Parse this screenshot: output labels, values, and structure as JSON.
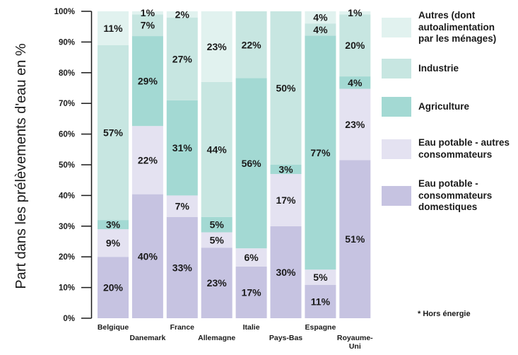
{
  "chart_data": {
    "type": "bar",
    "stacked": true,
    "percent": true,
    "ylabel": "Part dans les prélèvements d'eau en %",
    "ylim": [
      0,
      100
    ],
    "yticks": [
      "0%",
      "10%",
      "20%",
      "30%",
      "40%",
      "50%",
      "60%",
      "70%",
      "80%",
      "90%",
      "100%"
    ],
    "categories": [
      "Belgique",
      "Danemark",
      "France",
      "Allemagne",
      "Italie",
      "Pays-Bas",
      "Espagne",
      "Royaume-Uni"
    ],
    "category_labels": [
      [
        "Belgique"
      ],
      [
        "Danemark"
      ],
      [
        "France"
      ],
      [
        "Allemagne"
      ],
      [
        "Italie"
      ],
      [
        "Pays-Bas"
      ],
      [
        "Espagne"
      ],
      [
        "Royaume-",
        "Uni"
      ]
    ],
    "series": [
      {
        "name": "Eau potable - consommateurs domestiques",
        "color": "#c6c3e1",
        "values": [
          20,
          40,
          33,
          23,
          17,
          30,
          11,
          51
        ],
        "labels": [
          "20%",
          "40%",
          "33%",
          "23%",
          "17%",
          "30%",
          "11%",
          "51%"
        ]
      },
      {
        "name": "Eau potable - autres consommateurs",
        "color": "#e4e2f1",
        "values": [
          9,
          22,
          7,
          5,
          6,
          17,
          5,
          23
        ],
        "labels": [
          "9%",
          "22%",
          "7%",
          "5%",
          "6%",
          "17%",
          "5%",
          "23%"
        ]
      },
      {
        "name": "Agriculture",
        "color": "#a3d9d3",
        "values": [
          3,
          29,
          31,
          5,
          56,
          3,
          77,
          4
        ],
        "labels": [
          "3%",
          "29%",
          "31%",
          "5%",
          "56%",
          "3%",
          "77%",
          "4%"
        ]
      },
      {
        "name": "Industrie",
        "color": "#c7e6e1",
        "values": [
          57,
          7,
          27,
          44,
          22,
          50,
          4,
          20
        ],
        "labels": [
          "57%",
          "7%",
          "27%",
          "44%",
          "22%",
          "50%",
          "4%",
          "20%"
        ]
      },
      {
        "name": "Autres (dont autoalimentation par les ménages)",
        "color": "#e1f2ef",
        "values": [
          11,
          1,
          2,
          23,
          0,
          0,
          4,
          1
        ],
        "labels": [
          "11%",
          "1%",
          "2%",
          "23%",
          "",
          "",
          "4%",
          "1%"
        ]
      }
    ],
    "legend_placement": "right",
    "grid": false
  },
  "legend": [
    {
      "label": "Autres (dont\nautoalimentation\npar les ménages)",
      "color": "#e1f2ef"
    },
    {
      "label": "Industrie",
      "color": "#c7e6e1"
    },
    {
      "label": "Agriculture",
      "color": "#a3d9d3"
    },
    {
      "label": "Eau potable - autres\nconsommateurs",
      "color": "#e4e2f1"
    },
    {
      "label": "Eau potable -\nconsommateurs\ndomestiques",
      "color": "#c6c3e1"
    }
  ],
  "footnote": "* Hors énergie"
}
